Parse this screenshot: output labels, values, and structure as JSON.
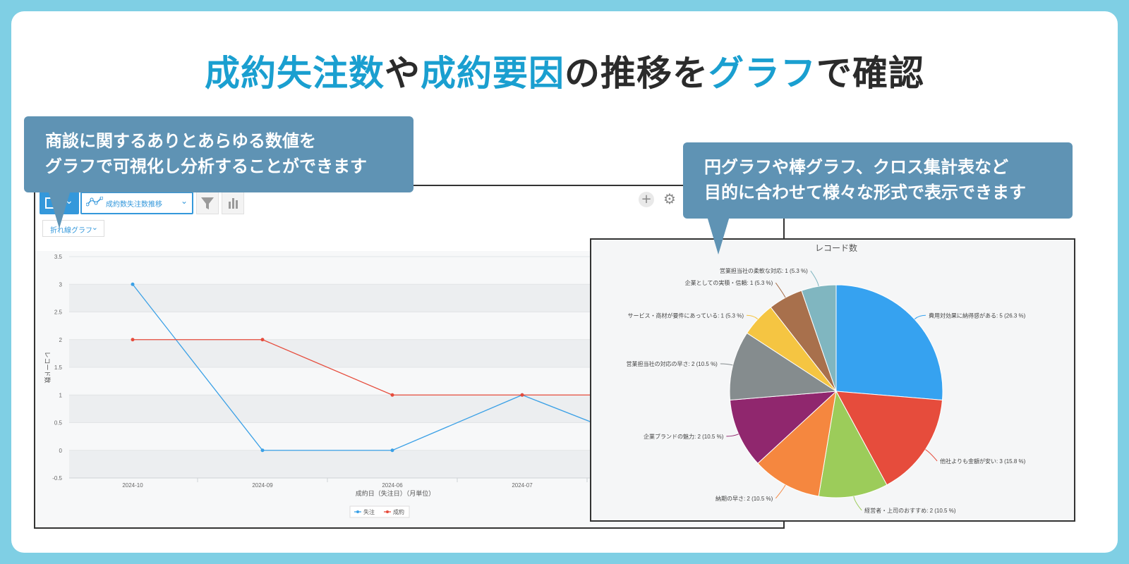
{
  "headline": {
    "p1": "成約失注数",
    "p2": "や",
    "p3": "成約要因",
    "p4": "の推移を",
    "p5": "グラフ",
    "p6": "で確認",
    "accent_color": "#1a9fd0"
  },
  "callout_left": {
    "line1": "商談に関するありとあらゆる数値を",
    "line2": "グラフで可視化し分析することができます"
  },
  "callout_right": {
    "line1": "円グラフや棒グラフ、クロス集計表など",
    "line2": "目的に合わせて様々な形式で表示できます"
  },
  "toolbar": {
    "chart_name": "成約数失注数推移",
    "view_icon": "table-icon",
    "filter_icon": "filter-icon",
    "chart_icon": "bar-chart-icon",
    "settings_icon": "gear-icon"
  },
  "chart_type_select": "折れ線グラフ",
  "chart_data": [
    {
      "type": "line",
      "categories": [
        "2024-10",
        "2024-09",
        "2024-06",
        "2024-07"
      ],
      "series": [
        {
          "name": "失注",
          "values": [
            3,
            0,
            0,
            1
          ],
          "color": "#3aa0e6"
        },
        {
          "name": "成約",
          "values": [
            2,
            2,
            1,
            1
          ],
          "color": "#e64c3c"
        }
      ],
      "xlabel": "成約日（失注日）（月単位）",
      "ylabel": "レコード数",
      "ylim": [
        -0.5,
        3.5
      ],
      "yticks": [
        "3.5",
        "3",
        "2.5",
        "2",
        "1.5",
        "1",
        "0.5",
        "0",
        "-0.5"
      ],
      "grid": true,
      "legend": "bottom"
    },
    {
      "type": "pie",
      "title": "レコード数",
      "slices": [
        {
          "label": "費用対効果に納得感がある: 5 (26.3 %)",
          "value": 5,
          "color": "#36a2f0"
        },
        {
          "label": "他社よりも金額が安い: 3 (15.8 %)",
          "value": 3,
          "color": "#e64c3c"
        },
        {
          "label": "経営者・上司のおすすめ: 2 (10.5 %)",
          "value": 2,
          "color": "#9ccc5a"
        },
        {
          "label": "納期の早さ: 2 (10.5 %)",
          "value": 2,
          "color": "#f5873f"
        },
        {
          "label": "企業ブランドの魅力: 2 (10.5 %)",
          "value": 2,
          "color": "#90276e"
        },
        {
          "label": "営業担当社の対応の早さ: 2 (10.5 %)",
          "value": 2,
          "color": "#858c8e"
        },
        {
          "label": "サービス・商材が要件にあっている: 1 (5.3 %)",
          "value": 1,
          "color": "#f5c542"
        },
        {
          "label": "企業としての実積・信頼: 1 (5.3 %)",
          "value": 1,
          "color": "#a8704c"
        },
        {
          "label": "営業担当社の柔軟な対応: 1 (5.3 %)",
          "value": 1,
          "color": "#80b6c0"
        }
      ]
    }
  ]
}
